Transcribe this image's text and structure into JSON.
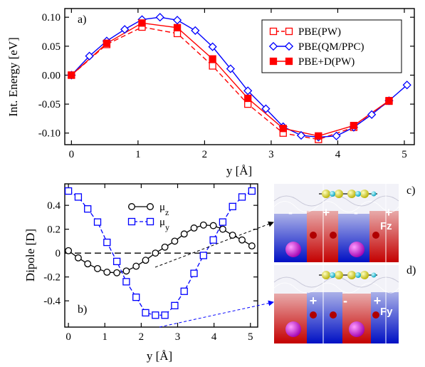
{
  "chart_data": [
    {
      "panel": "a)",
      "type": "line",
      "xlabel": "y [Å]",
      "ylabel": "Int. Energy [eV]",
      "xlim": [
        -0.1,
        5.15
      ],
      "ylim": [
        -0.12,
        0.115
      ],
      "xticks": [
        "0",
        "1",
        "2",
        "3",
        "4",
        "5"
      ],
      "yticks": [
        "0.10",
        "0.05",
        "0.00",
        "-0.05",
        "-0.10"
      ],
      "legend_position": "top-right",
      "series": [
        {
          "name": "PBE(PW)",
          "color": "#ff0000",
          "marker": "open-square",
          "dash": true,
          "x": [
            0,
            0.53,
            1.06,
            1.59,
            2.12,
            2.65,
            3.18,
            3.71,
            4.24,
            4.77
          ],
          "y": [
            0.0,
            0.053,
            0.083,
            0.072,
            0.016,
            -0.05,
            -0.1,
            -0.111,
            -0.09,
            -0.045
          ]
        },
        {
          "name": "PBE(QM/PPC)",
          "color": "#0000ff",
          "marker": "open-diamond",
          "dash": false,
          "x": [
            0,
            0.27,
            0.53,
            0.8,
            1.06,
            1.33,
            1.59,
            1.86,
            2.12,
            2.39,
            2.65,
            2.92,
            3.18,
            3.45,
            3.71,
            3.98,
            4.24,
            4.51,
            4.77,
            5.04
          ],
          "y": [
            0.0,
            0.033,
            0.059,
            0.079,
            0.096,
            0.1,
            0.095,
            0.077,
            0.049,
            0.011,
            -0.027,
            -0.058,
            -0.089,
            -0.104,
            -0.107,
            -0.105,
            -0.09,
            -0.068,
            -0.044,
            -0.017
          ]
        },
        {
          "name": "PBE+D(PW)",
          "color": "#ff0000",
          "marker": "filled-square",
          "dash": false,
          "x": [
            0,
            0.53,
            1.06,
            1.59,
            2.12,
            2.65,
            3.18,
            3.71,
            4.24,
            4.77
          ],
          "y": [
            0.0,
            0.055,
            0.09,
            0.082,
            0.028,
            -0.04,
            -0.092,
            -0.105,
            -0.087,
            -0.044
          ]
        }
      ]
    },
    {
      "panel": "b)",
      "type": "line",
      "xlabel": "y [Å]",
      "ylabel": "Dipole  [D]",
      "xlim": [
        -0.1,
        5.2
      ],
      "ylim": [
        -0.62,
        0.58
      ],
      "xticks": [
        "0",
        "1",
        "2",
        "3",
        "4",
        "5"
      ],
      "yticks": [
        "0.4",
        "0.2",
        "0",
        "-0.2",
        "-0.4"
      ],
      "legend_position": "top-center",
      "zero_line": true,
      "series": [
        {
          "name": "μz",
          "color": "#000000",
          "marker": "open-circle",
          "x": [
            0,
            0.27,
            0.53,
            0.8,
            1.06,
            1.33,
            1.59,
            1.86,
            2.12,
            2.39,
            2.65,
            2.92,
            3.18,
            3.45,
            3.71,
            3.98,
            4.24,
            4.51,
            4.77,
            5.04
          ],
          "y": [
            0.02,
            -0.04,
            -0.09,
            -0.13,
            -0.16,
            -0.165,
            -0.15,
            -0.11,
            -0.06,
            0.0,
            0.05,
            0.1,
            0.16,
            0.21,
            0.235,
            0.23,
            0.2,
            0.15,
            0.11,
            0.06
          ]
        },
        {
          "name": "μy",
          "color": "#0000ff",
          "marker": "open-square",
          "x": [
            0,
            0.27,
            0.53,
            0.8,
            1.06,
            1.33,
            1.59,
            1.86,
            2.12,
            2.39,
            2.65,
            2.92,
            3.18,
            3.45,
            3.71,
            3.98,
            4.24,
            4.51,
            4.77,
            5.04
          ],
          "y": [
            0.52,
            0.47,
            0.37,
            0.26,
            0.09,
            -0.07,
            -0.24,
            -0.37,
            -0.5,
            -0.52,
            -0.52,
            -0.44,
            -0.32,
            -0.17,
            -0.02,
            0.11,
            0.26,
            0.39,
            0.47,
            0.52
          ]
        }
      ]
    }
  ],
  "insets": [
    {
      "panel": "c)",
      "signs": [
        "-",
        "+",
        "-",
        "+"
      ],
      "label": "Fz"
    },
    {
      "panel": "d)",
      "signs": [
        "+",
        "-",
        "+"
      ],
      "label": "Fy"
    }
  ]
}
